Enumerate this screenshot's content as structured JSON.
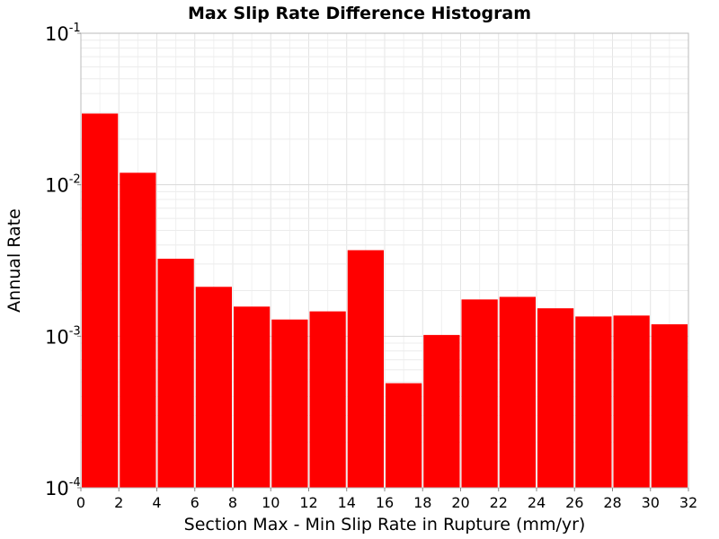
{
  "chart_data": {
    "type": "bar",
    "title": "Max Slip Rate Difference Histogram",
    "xlabel": "Section Max - Min Slip Rate in Rupture (mm/yr)",
    "ylabel": "Annual Rate",
    "x_ticks": [
      "0",
      "2",
      "4",
      "6",
      "8",
      "10",
      "12",
      "14",
      "16",
      "18",
      "20",
      "22",
      "24",
      "26",
      "28",
      "30",
      "32"
    ],
    "y_ticks": [
      {
        "base": "10",
        "exp": "-1",
        "value": 0.1
      },
      {
        "base": "10",
        "exp": "-2",
        "value": 0.01
      },
      {
        "base": "10",
        "exp": "-3",
        "value": 0.001
      },
      {
        "base": "10",
        "exp": "-4",
        "value": 0.0001
      }
    ],
    "xlim": [
      0,
      32
    ],
    "ylim": [
      0.0001,
      0.1
    ],
    "y_scale": "log",
    "grid": true,
    "bar_color": "#ff0000",
    "bin_width": 2,
    "bins": [
      {
        "x_start": 0,
        "x_end": 2,
        "value": 0.0295
      },
      {
        "x_start": 2,
        "x_end": 4,
        "value": 0.012
      },
      {
        "x_start": 4,
        "x_end": 6,
        "value": 0.00325
      },
      {
        "x_start": 6,
        "x_end": 8,
        "value": 0.00212
      },
      {
        "x_start": 8,
        "x_end": 10,
        "value": 0.00157
      },
      {
        "x_start": 10,
        "x_end": 12,
        "value": 0.00129
      },
      {
        "x_start": 12,
        "x_end": 14,
        "value": 0.00146
      },
      {
        "x_start": 14,
        "x_end": 16,
        "value": 0.0037
      },
      {
        "x_start": 16,
        "x_end": 18,
        "value": 0.00049
      },
      {
        "x_start": 18,
        "x_end": 20,
        "value": 0.00102
      },
      {
        "x_start": 20,
        "x_end": 22,
        "value": 0.00175
      },
      {
        "x_start": 22,
        "x_end": 24,
        "value": 0.00182
      },
      {
        "x_start": 24,
        "x_end": 26,
        "value": 0.00153
      },
      {
        "x_start": 26,
        "x_end": 28,
        "value": 0.00135
      },
      {
        "x_start": 28,
        "x_end": 30,
        "value": 0.00137
      },
      {
        "x_start": 30,
        "x_end": 32,
        "value": 0.0012
      }
    ]
  }
}
